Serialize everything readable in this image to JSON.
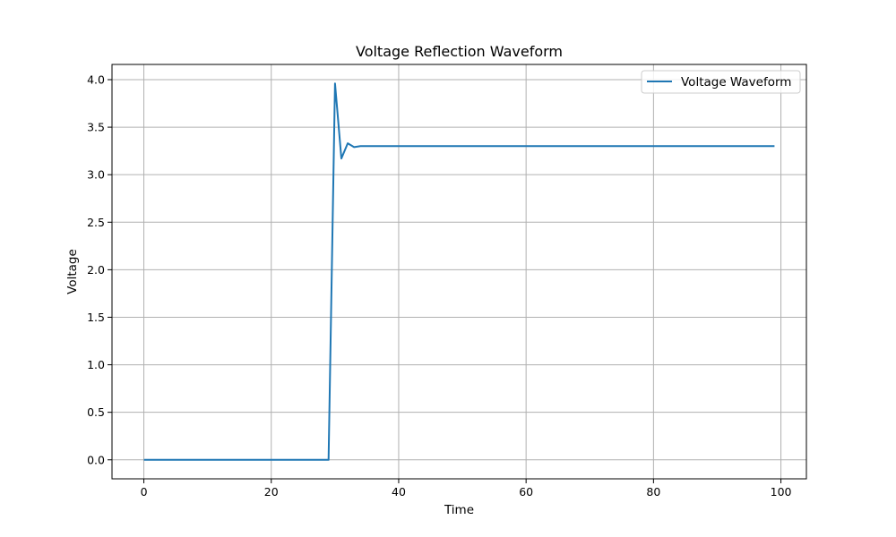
{
  "chart_data": {
    "type": "line",
    "title": "Voltage Reflection Waveform",
    "xlabel": "Time",
    "ylabel": "Voltage",
    "xlim": [
      -5,
      104
    ],
    "ylim": [
      -0.2,
      4.16
    ],
    "xticks": [
      0,
      20,
      40,
      60,
      80,
      100
    ],
    "yticks": [
      0.0,
      0.5,
      1.0,
      1.5,
      2.0,
      2.5,
      3.0,
      3.5,
      4.0
    ],
    "grid": true,
    "legend_position": "top-right",
    "series": [
      {
        "name": "Voltage Waveform",
        "color": "#1f77b4",
        "x": [
          0,
          29,
          30,
          31,
          32,
          33,
          34,
          99
        ],
        "y": [
          0.0,
          0.0,
          3.96,
          3.17,
          3.33,
          3.29,
          3.3,
          3.3
        ]
      }
    ]
  }
}
